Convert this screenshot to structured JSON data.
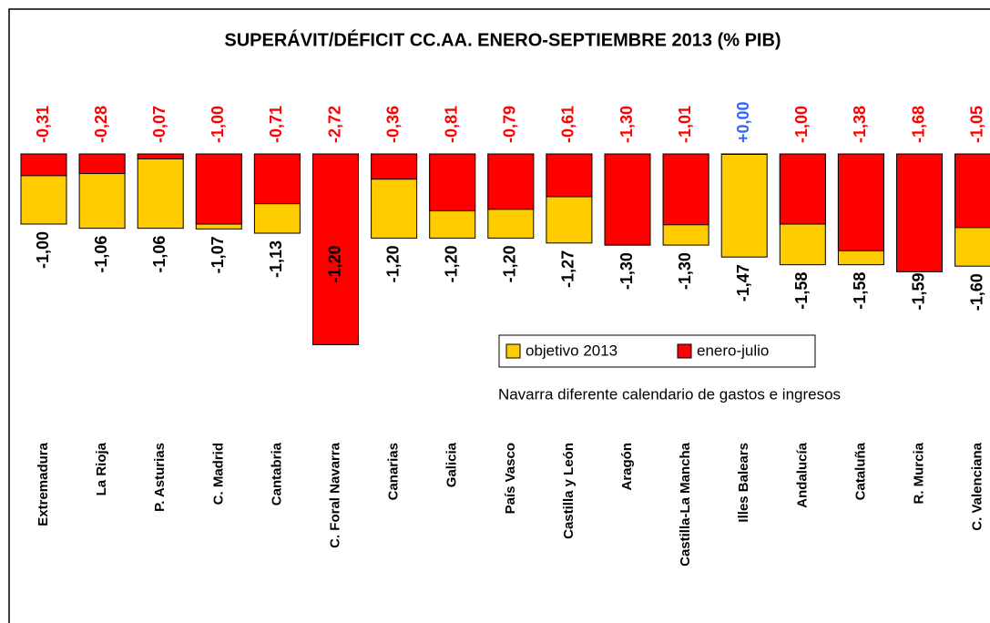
{
  "chart_data": {
    "type": "bar",
    "title": "SUPERÁVIT/DÉFICIT CC.AA. ENERO-SEPTIEMBRE 2013 (% PIB)",
    "note": "Navarra diferente calendario de gastos e ingresos",
    "categories": [
      "Extremadura",
      "La Rioja",
      "P. Asturias",
      "C. Madrid",
      "Cantabria",
      "C. Foral Navarra",
      "Canarias",
      "Galicia",
      "País Vasco",
      "Castilla y León",
      "Aragón",
      "Castilla-La Mancha",
      "Illes Balears",
      "Andalucía",
      "Cataluña",
      "R. Murcia",
      "C. Valenciana"
    ],
    "series": [
      {
        "name": "objetivo 2013",
        "color": "#ffcc00",
        "values": [
          -1.0,
          -1.06,
          -1.06,
          -1.07,
          -1.13,
          -1.2,
          -1.2,
          -1.2,
          -1.2,
          -1.27,
          -1.3,
          -1.3,
          -1.47,
          -1.58,
          -1.58,
          -1.59,
          -1.6
        ],
        "value_labels": [
          "-1,00",
          "-1,06",
          "-1,06",
          "-1,07",
          "-1,13",
          "-1,20",
          "-1,20",
          "-1,20",
          "-1,20",
          "-1,27",
          "-1,30",
          "-1,30",
          "-1,47",
          "-1,58",
          "-1,58",
          "-1,59",
          "-1,60"
        ]
      },
      {
        "name": "enero-julio",
        "color": "#ff0000",
        "values": [
          -0.31,
          -0.28,
          -0.07,
          -1.0,
          -0.71,
          -2.72,
          -0.36,
          -0.81,
          -0.79,
          -0.61,
          -1.3,
          -1.01,
          0.0,
          -1.0,
          -1.38,
          -1.68,
          -1.05
        ],
        "value_labels": [
          "-0,31",
          "-0,28",
          "-0,07",
          "-1,00",
          "-0,71",
          "-2,72",
          "-0,36",
          "-0,81",
          "-0,79",
          "-0,61",
          "-1,30",
          "-1,01",
          "+0,00",
          "-1,00",
          "-1,38",
          "-1,68",
          "-1,05"
        ]
      }
    ],
    "ylim": [
      -3,
      0
    ]
  }
}
